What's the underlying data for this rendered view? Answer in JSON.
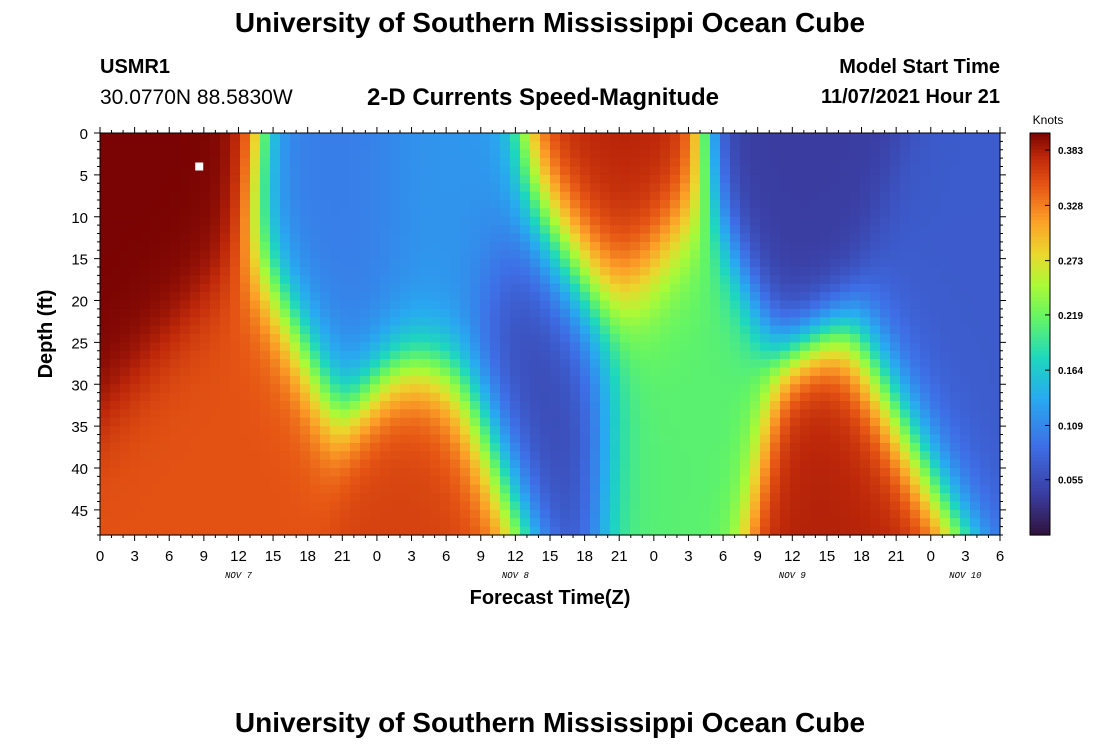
{
  "title": "University of Southern Mississippi Ocean Cube",
  "title_bottom": "University of Southern Mississippi Ocean Cube",
  "station": {
    "id": "USMR1",
    "coords": "30.0770N  88.5830W"
  },
  "subtitle": "2-D Currents Speed-Magnitude",
  "model_start": {
    "label": "Model Start Time",
    "value": "11/07/2021 Hour 21"
  },
  "chart_data": {
    "type": "heatmap",
    "title": "2-D Currents Speed-Magnitude",
    "xlabel": "Forecast Time(Z)",
    "ylabel": "Depth (ft)",
    "x_range_hours": [
      0,
      78
    ],
    "y_range_ft": [
      0,
      48
    ],
    "y_ticks": [
      0,
      5,
      10,
      15,
      20,
      25,
      30,
      35,
      40,
      45
    ],
    "x_tick_labels": [
      "0",
      "3",
      "6",
      "9",
      "12",
      "15",
      "18",
      "21",
      "0",
      "3",
      "6",
      "9",
      "12",
      "15",
      "18",
      "21",
      "0",
      "3",
      "6",
      "9",
      "12",
      "15",
      "18",
      "21",
      "0",
      "3",
      "6"
    ],
    "day_labels": [
      {
        "label": "NOV 7",
        "hour": 12
      },
      {
        "label": "NOV 8",
        "hour": 36
      },
      {
        "label": "NOV 9",
        "hour": 60
      },
      {
        "label": "NOV 10",
        "hour": 75
      }
    ],
    "colorbar": {
      "title": "Knots",
      "min": 0.0,
      "max": 0.4,
      "ticks": [
        "0.383",
        "0.328",
        "0.273",
        "0.219",
        "0.164",
        "0.109",
        "0.055"
      ],
      "tick_values": [
        0.383,
        0.328,
        0.273,
        0.219,
        0.164,
        0.109,
        0.055
      ]
    },
    "speed_features": [
      {
        "hour": 6,
        "depth_ft": 5,
        "speed": 0.4
      },
      {
        "hour": 12,
        "depth_ft": 35,
        "speed": 0.35
      },
      {
        "hour": 21,
        "depth_ft": 10,
        "speed": 0.1
      },
      {
        "hour": 30,
        "depth_ft": 10,
        "speed": 0.12
      },
      {
        "hour": 29,
        "depth_ft": 45,
        "speed": 0.36
      },
      {
        "hour": 38,
        "depth_ft": 27,
        "speed": 0.05
      },
      {
        "hour": 44,
        "depth_ft": 5,
        "speed": 0.38
      },
      {
        "hour": 50,
        "depth_ft": 30,
        "speed": 0.21
      },
      {
        "hour": 61,
        "depth_ft": 3,
        "speed": 0.04
      },
      {
        "hour": 65,
        "depth_ft": 45,
        "speed": 0.38
      },
      {
        "hour": 73,
        "depth_ft": 22,
        "speed": 0.07
      }
    ],
    "marker": {
      "hour": 8.6,
      "depth_ft": 4
    }
  }
}
